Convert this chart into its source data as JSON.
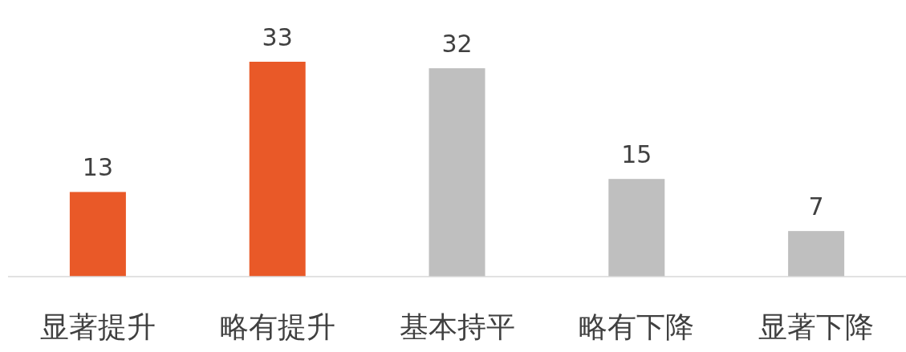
{
  "chart_data": {
    "type": "bar",
    "categories": [
      "显著提升",
      "略有提升",
      "基本持平",
      "略有下降",
      "显著下降"
    ],
    "values": [
      13,
      33,
      32,
      15,
      7
    ],
    "colors": [
      "#e95928",
      "#e95928",
      "#bfbfbf",
      "#bfbfbf",
      "#bfbfbf"
    ],
    "data_labels": true
  }
}
